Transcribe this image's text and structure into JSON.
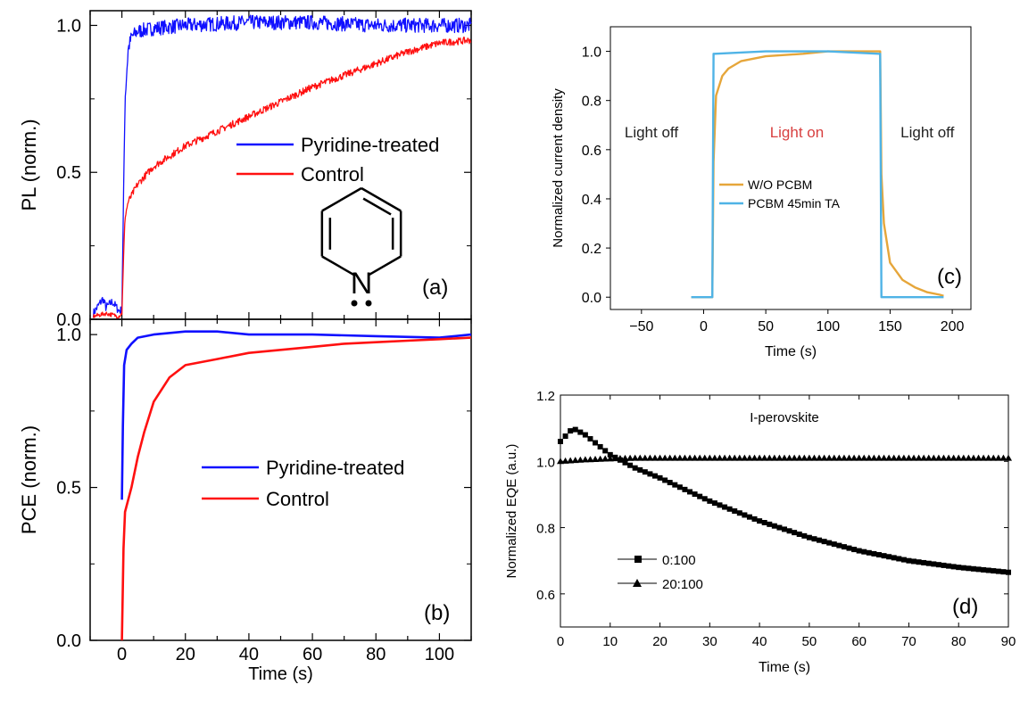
{
  "chart_data": [
    {
      "id": "a",
      "type": "line",
      "panel_label": "(a)",
      "ylabel": "PL (norm.)",
      "xlim": [
        -10,
        110
      ],
      "ylim": [
        0,
        1.05
      ],
      "x_ticks": [
        0,
        20,
        40,
        60,
        80,
        100
      ],
      "y_ticks": [
        "0.0",
        "0.5",
        "1.0"
      ],
      "inset": {
        "molecule": "pyridine",
        "atom_label": "N"
      },
      "legend": {
        "placement": "middle-right"
      },
      "series": [
        {
          "name": "Pyridine-treated",
          "color": "#1010ff",
          "noise": 0.025,
          "x": [
            -9,
            -6,
            -5,
            -3,
            -1,
            0,
            0.5,
            1,
            2,
            3,
            5,
            10,
            20,
            40,
            60,
            80,
            100,
            110
          ],
          "y": [
            0.02,
            0.07,
            0.04,
            0.06,
            0.03,
            0.03,
            0.4,
            0.75,
            0.92,
            0.96,
            0.98,
            0.99,
            1.0,
            1.01,
            1.01,
            1.0,
            1.0,
            1.0
          ]
        },
        {
          "name": "Control",
          "color": "#ff1010",
          "noise": 0.012,
          "x": [
            -9,
            -5,
            -1,
            0,
            0.5,
            1,
            2,
            5,
            10,
            20,
            30,
            40,
            50,
            60,
            70,
            80,
            90,
            100,
            110
          ],
          "y": [
            0.01,
            0.02,
            0.01,
            0.02,
            0.2,
            0.35,
            0.4,
            0.46,
            0.52,
            0.59,
            0.64,
            0.69,
            0.74,
            0.79,
            0.83,
            0.87,
            0.91,
            0.94,
            0.95
          ]
        }
      ]
    },
    {
      "id": "b",
      "type": "line",
      "panel_label": "(b)",
      "xlabel": "Time (s)",
      "ylabel": "PCE (norm.)",
      "xlim": [
        -10,
        110
      ],
      "ylim": [
        0,
        1.05
      ],
      "x_ticks": [
        0,
        20,
        40,
        60,
        80,
        100
      ],
      "y_ticks": [
        "0.0",
        "0.5",
        "1.0"
      ],
      "legend": {
        "placement": "middle-right"
      },
      "series": [
        {
          "name": "Pyridine-treated",
          "color": "#1010ff",
          "x": [
            0,
            0.3,
            0.7,
            1.5,
            3,
            5,
            10,
            20,
            30,
            40,
            60,
            80,
            100,
            110
          ],
          "y": [
            0.46,
            0.7,
            0.9,
            0.95,
            0.97,
            0.99,
            1.0,
            1.01,
            1.01,
            1.0,
            1.0,
            0.995,
            0.99,
            1.0
          ]
        },
        {
          "name": "Control",
          "color": "#ff1010",
          "x": [
            0,
            0.5,
            1,
            3,
            5,
            7,
            10,
            15,
            20,
            30,
            40,
            50,
            60,
            70,
            80,
            90,
            100,
            110
          ],
          "y": [
            0.0,
            0.3,
            0.42,
            0.5,
            0.6,
            0.68,
            0.78,
            0.86,
            0.9,
            0.92,
            0.94,
            0.95,
            0.96,
            0.97,
            0.975,
            0.98,
            0.985,
            0.99
          ]
        }
      ]
    },
    {
      "id": "c",
      "type": "line",
      "panel_label": "(c)",
      "xlabel": "Time (s)",
      "ylabel": "Normalized current density",
      "xlim": [
        -75,
        215
      ],
      "ylim": [
        -0.05,
        1.1
      ],
      "x_ticks": [
        "−50",
        "0",
        "50",
        "100",
        "150",
        "200"
      ],
      "x_tick_values": [
        -50,
        0,
        50,
        100,
        150,
        200
      ],
      "y_ticks": [
        "0.0",
        "0.2",
        "0.4",
        "0.6",
        "0.8",
        "1.0"
      ],
      "y_tick_values": [
        0,
        0.2,
        0.4,
        0.6,
        0.8,
        1.0
      ],
      "annotations": [
        {
          "text": "Light off",
          "x": -42,
          "y": 0.65,
          "color": "#222222"
        },
        {
          "text": "Light on",
          "x": 75,
          "y": 0.65,
          "color": "#d84040"
        },
        {
          "text": "Light off",
          "x": 180,
          "y": 0.65,
          "color": "#222222"
        }
      ],
      "legend": {
        "placement": "center"
      },
      "series": [
        {
          "name": "W/O PCBM",
          "color": "#e6a63a",
          "x": [
            -10,
            7,
            8,
            10,
            15,
            20,
            30,
            50,
            80,
            100,
            142,
            143,
            145,
            150,
            160,
            170,
            180,
            190,
            193
          ],
          "y": [
            0.0,
            0.0,
            0.55,
            0.82,
            0.9,
            0.93,
            0.96,
            0.98,
            0.99,
            1.0,
            1.0,
            0.5,
            0.3,
            0.14,
            0.07,
            0.04,
            0.02,
            0.01,
            0.005
          ]
        },
        {
          "name": "PCBM 45min TA",
          "color": "#4fb3e6",
          "x": [
            -10,
            7,
            8,
            9,
            50,
            100,
            141,
            142,
            143,
            193
          ],
          "y": [
            0.0,
            0.0,
            0.99,
            0.99,
            1.0,
            1.0,
            0.99,
            0.99,
            0.0,
            0.0
          ]
        }
      ]
    },
    {
      "id": "d",
      "type": "scatter",
      "panel_label": "(d)",
      "title": "I-perovskite",
      "xlabel": "Time (s)",
      "ylabel": "Normalized EQE (a.u.)",
      "xlim": [
        0,
        90
      ],
      "ylim": [
        0.5,
        1.2
      ],
      "x_ticks": [
        0,
        10,
        20,
        30,
        40,
        50,
        60,
        70,
        80,
        90
      ],
      "y_ticks": [
        "0.6",
        "0.8",
        "1.0",
        "1.2"
      ],
      "y_tick_values": [
        0.6,
        0.8,
        1.0,
        1.2
      ],
      "legend": {
        "placement": "bottom-left"
      },
      "series": [
        {
          "name": "0:100",
          "marker": "square",
          "x": [
            0,
            2.5,
            5,
            7.5,
            10,
            12.5,
            15,
            20,
            30,
            40,
            50,
            60,
            70,
            80,
            90
          ],
          "y": [
            1.06,
            1.1,
            1.08,
            1.05,
            1.02,
            1.0,
            0.98,
            0.95,
            0.88,
            0.82,
            0.77,
            0.73,
            0.7,
            0.68,
            0.665
          ]
        },
        {
          "name": "20:100",
          "marker": "triangle",
          "x": [
            0,
            5,
            10,
            15,
            20,
            90
          ],
          "y": [
            1.0,
            1.005,
            1.008,
            1.01,
            1.01,
            1.01
          ]
        }
      ]
    }
  ]
}
